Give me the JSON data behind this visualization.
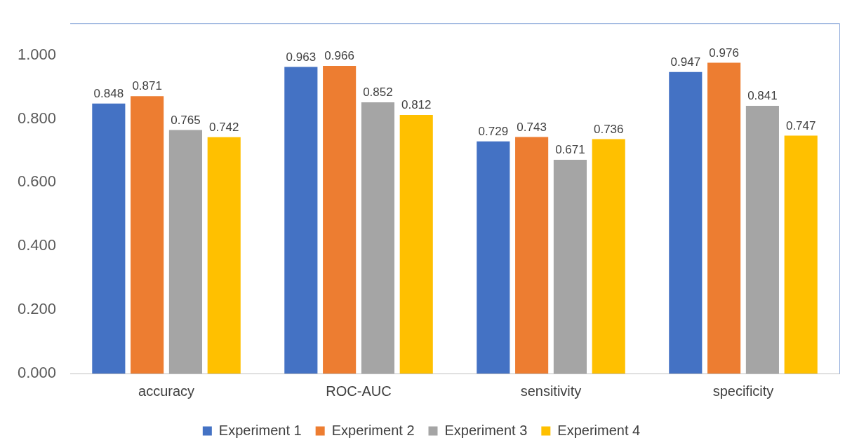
{
  "chart_data": {
    "type": "bar",
    "categories": [
      "accuracy",
      "ROC-AUC",
      "sensitivity",
      "specificity"
    ],
    "series": [
      {
        "name": "Experiment 1",
        "color": "#4472c4",
        "values": [
          0.848,
          0.963,
          0.729,
          0.947
        ]
      },
      {
        "name": "Experiment 2",
        "color": "#ed7d31",
        "values": [
          0.871,
          0.966,
          0.743,
          0.976
        ]
      },
      {
        "name": "Experiment 3",
        "color": "#a5a5a5",
        "values": [
          0.765,
          0.852,
          0.671,
          0.841
        ]
      },
      {
        "name": "Experiment 4",
        "color": "#ffc000",
        "values": [
          0.742,
          0.812,
          0.736,
          0.747
        ]
      }
    ],
    "ylim": [
      0,
      1.1
    ],
    "yticks": [
      {
        "value": 0,
        "label": "0.000"
      },
      {
        "value": 0.2,
        "label": "0.200"
      },
      {
        "value": 0.4,
        "label": "0.400"
      },
      {
        "value": 0.6,
        "label": "0.600"
      },
      {
        "value": 0.8,
        "label": "0.800"
      },
      {
        "value": 1,
        "label": "1.000"
      }
    ],
    "grid": false,
    "legend": "bottom",
    "data_labels": true
  }
}
